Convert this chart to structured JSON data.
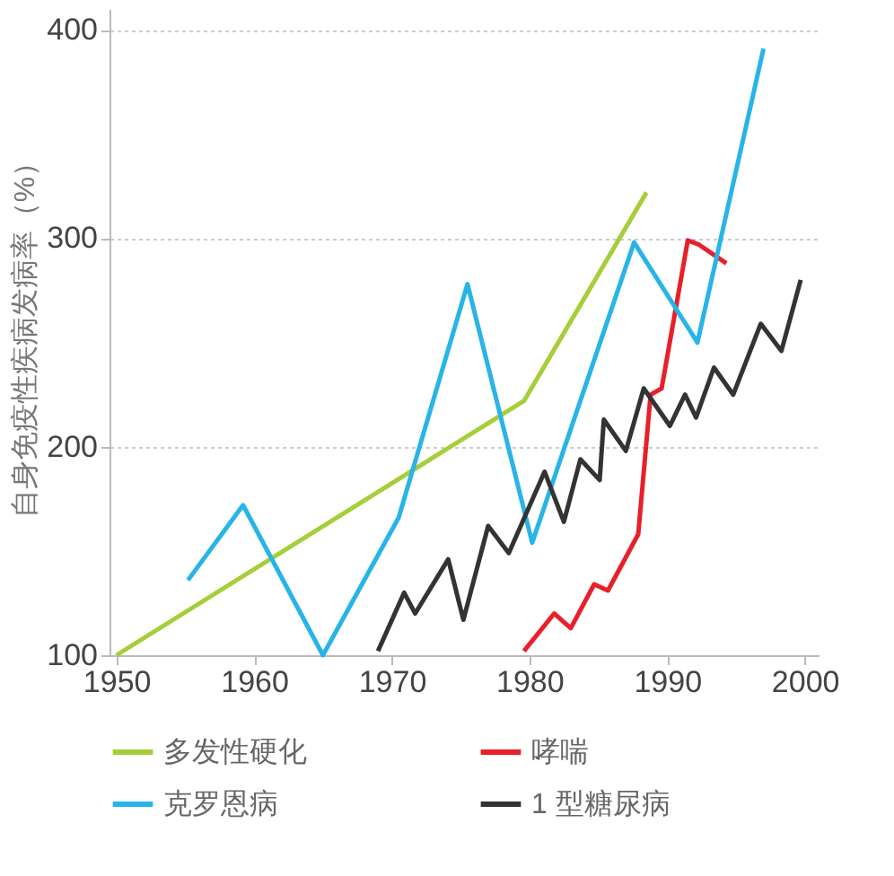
{
  "chart_data": {
    "type": "line",
    "ylabel": "自身免疫性疾病发病率（%）",
    "xlim": [
      1949.5,
      2001
    ],
    "xticks": [
      1950,
      1960,
      1970,
      1980,
      1990,
      2000
    ],
    "ylim": [
      100,
      410
    ],
    "yticks": [
      100,
      200,
      300,
      400
    ],
    "grid": "y",
    "legend": "bottom",
    "marker": "none",
    "line_style": "solid",
    "series": [
      {
        "name": "多发性硬化",
        "color": "#a6ce39",
        "x": [
          1950,
          1979.6,
          1988.5
        ],
        "values": [
          100,
          222,
          322
        ]
      },
      {
        "name": "哮喘",
        "color": "#e8202a",
        "x": [
          1979.6,
          1981.8,
          1983,
          1984.7,
          1985.7,
          1987.9,
          1988.8,
          1989.6,
          1991.5,
          1992.3,
          1994.3
        ],
        "values": [
          102,
          120,
          113,
          134,
          131,
          158,
          225,
          228,
          299,
          297,
          288
        ]
      },
      {
        "name": "克罗恩病",
        "color": "#29b4e8",
        "x": [
          1955.2,
          1959.2,
          1965,
          1970.5,
          1975.5,
          1980.2,
          1987.6,
          1992.2,
          1997
        ],
        "values": [
          136,
          172,
          100,
          166,
          278,
          154,
          298,
          250,
          391
        ]
      },
      {
        "name": "1 型糖尿病",
        "color": "#333333",
        "x": [
          1969,
          1970.9,
          1971.7,
          1974.1,
          1975.2,
          1977,
          1978.5,
          1981.1,
          1982.5,
          1983.7,
          1985.1,
          1985.4,
          1987,
          1988.3,
          1990.2,
          1991.3,
          1992.1,
          1993.4,
          1994.8,
          1996.8,
          1998.3,
          1999.7
        ],
        "values": [
          102,
          130,
          120,
          146,
          117,
          162,
          149,
          188,
          164,
          194,
          184,
          213,
          198,
          228,
          210,
          225,
          214,
          238,
          225,
          259,
          246,
          280
        ]
      }
    ]
  }
}
